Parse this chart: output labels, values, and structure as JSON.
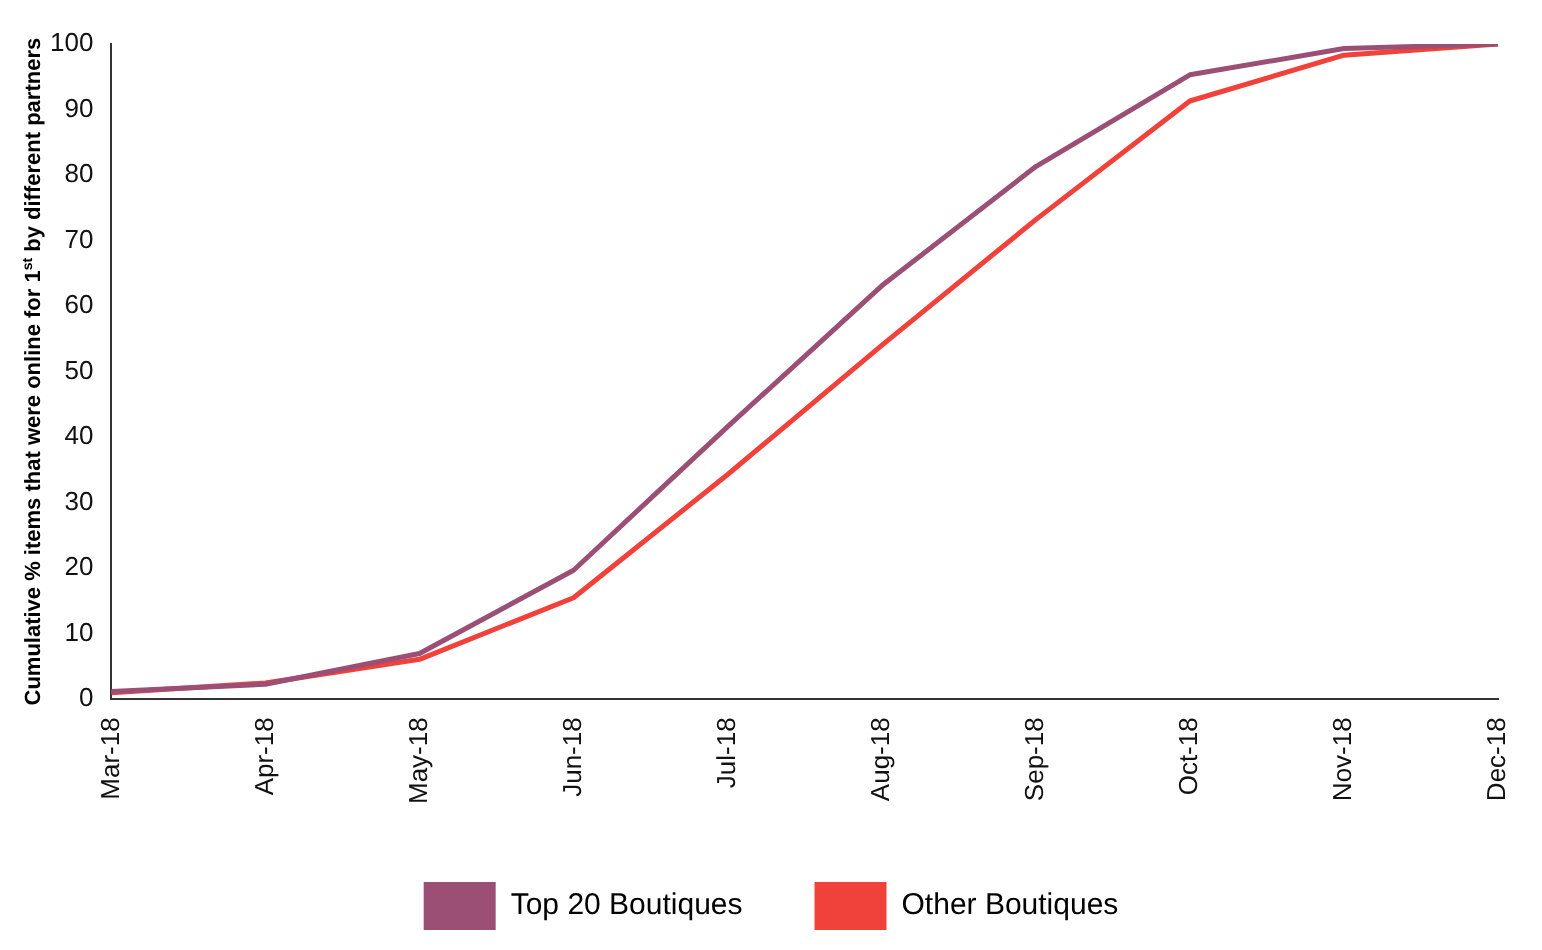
{
  "chart_data": {
    "type": "line",
    "ylabel": "Cumulative % items that were online for 1$^{st}$ by different partners",
    "categories": [
      "Mar-18",
      "Apr-18",
      "May-18",
      "Jun-18",
      "Jul-18",
      "Aug-18",
      "Sep-18",
      "Oct-18",
      "Nov-18",
      "Dec-18"
    ],
    "series": [
      {
        "name": "Top 20 Boutiques",
        "color": "#9b4f74",
        "values": [
          1.2,
          2.3,
          7,
          19.7,
          41.6,
          63.1,
          81.3,
          95.3,
          99.3,
          100
        ]
      },
      {
        "name": "Other Boutiques",
        "color": "#f0413b",
        "values": [
          1,
          2.5,
          6.1,
          15.5,
          34.3,
          54,
          73.2,
          91.3,
          98.3,
          100
        ]
      }
    ],
    "ylim": [
      0,
      100
    ],
    "yticks": [
      0,
      10,
      20,
      30,
      40,
      50,
      60,
      70,
      80,
      90,
      100
    ],
    "grid": false,
    "legend": "bottom",
    "marker": "none",
    "line_style": "solid"
  }
}
